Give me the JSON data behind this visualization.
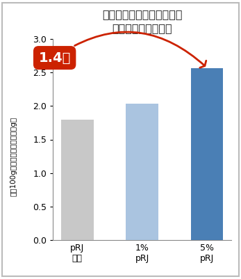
{
  "title_line1": "酵素分解ローヤルゼリーの",
  "title_line2": "筋肉量に対する影響",
  "categories": [
    "pRJ\nなし",
    "1%\npRJ",
    "5%\npRJ"
  ],
  "values": [
    1.8,
    2.03,
    2.57
  ],
  "bar_colors": [
    "#c8c8c8",
    "#aac4e0",
    "#4a7fb5"
  ],
  "ylim": [
    0,
    3
  ],
  "yticks": [
    0,
    0.5,
    1.0,
    1.5,
    2.0,
    2.5,
    3.0
  ],
  "ylabel": "体重100g当たりの筋肉の重さ（g）",
  "annotation_text": "1.4倍",
  "bubble_color": "#cc2200",
  "bubble_text_color": "#ffffff",
  "arrow_color": "#cc2200",
  "background_color": "#ffffff",
  "border_color": "#bbbbbb",
  "title_fontsize": 11.5,
  "bar_width": 0.5
}
